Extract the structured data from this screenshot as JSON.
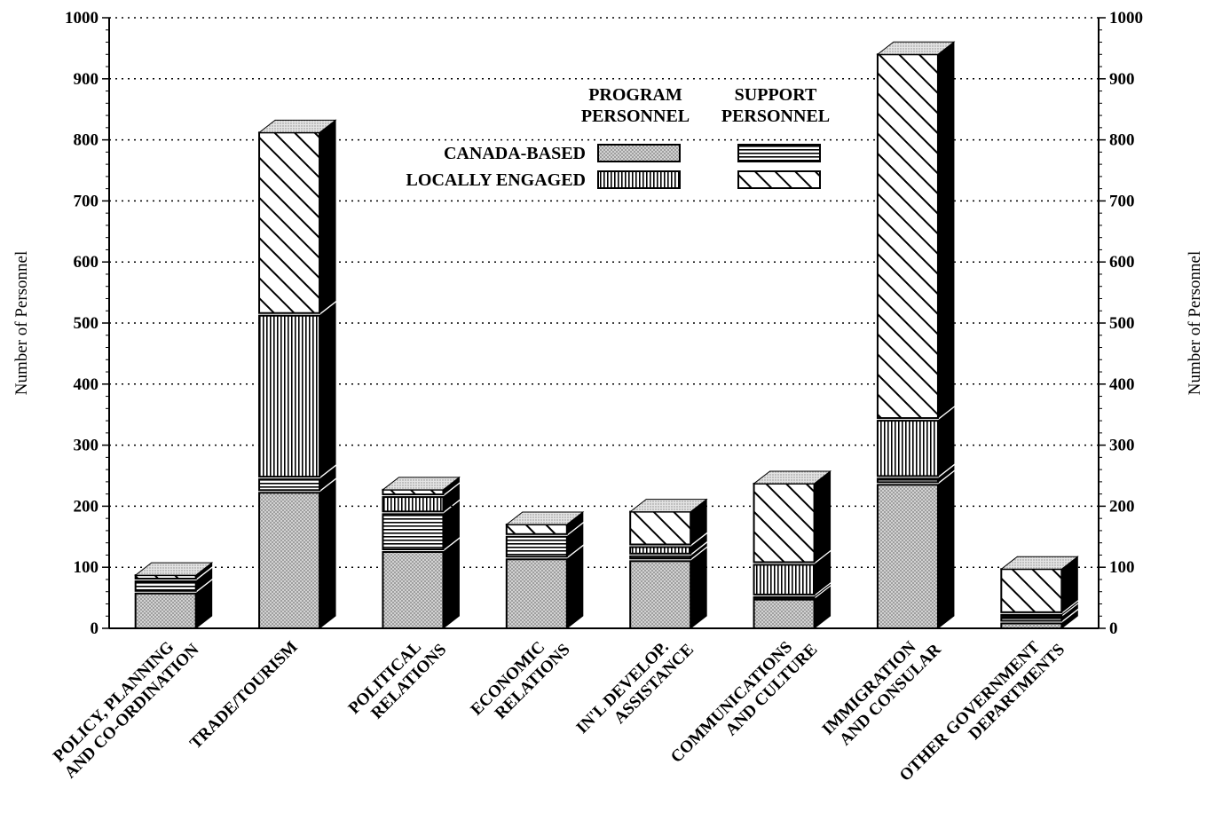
{
  "chart_data": {
    "type": "bar",
    "stacked": true,
    "three_d": true,
    "ylabel_left": "Number of Personnel",
    "ylabel_right": "Number of Personnel",
    "ylim": [
      0,
      1000
    ],
    "yticks": [
      0,
      100,
      200,
      300,
      400,
      500,
      600,
      700,
      800,
      900,
      1000
    ],
    "grid": "dotted horizontal",
    "legend": {
      "placement": "top-center",
      "column_headers": [
        [
          "PROGRAM",
          "PERSONNEL"
        ],
        [
          "SUPPORT",
          "PERSONNEL"
        ]
      ],
      "row_headers": [
        "CANADA-BASED",
        "LOCALLY ENGAGED"
      ]
    },
    "categories": [
      [
        "POLICY, PLANNING",
        "AND CO-ORDINATION"
      ],
      [
        "TRADE/TOURISM"
      ],
      [
        "POLITICAL",
        "RELATIONS"
      ],
      [
        "ECONOMIC",
        "RELATIONS"
      ],
      [
        "IN'L DEVELOP.",
        "ASSISTANCE"
      ],
      [
        "COMMUNICATIONS",
        "AND CULTURE"
      ],
      [
        "IMMIGRATION",
        "AND CONSULAR"
      ],
      [
        "OTHER GOVERNMENT",
        "DEPARTMENTS"
      ]
    ],
    "series": [
      {
        "key": "cb_program",
        "pattern": "dots",
        "values": [
          57,
          222,
          125,
          113,
          110,
          47,
          235,
          8
        ]
      },
      {
        "key": "cb_support",
        "pattern": "horizontal",
        "values": [
          20,
          22,
          62,
          37,
          8,
          4,
          10,
          10
        ]
      },
      {
        "key": "le_program",
        "pattern": "vertical",
        "values": [
          0,
          268,
          28,
          0,
          15,
          53,
          95,
          4
        ]
      },
      {
        "key": "le_support",
        "pattern": "diagonal",
        "values": [
          10,
          300,
          12,
          20,
          58,
          133,
          600,
          75
        ]
      }
    ],
    "colors": {
      "fill": "#ffffff",
      "stroke": "#000000",
      "dots": "#c8c8c8",
      "side": "#000000",
      "top": "#d8d8d8"
    }
  }
}
